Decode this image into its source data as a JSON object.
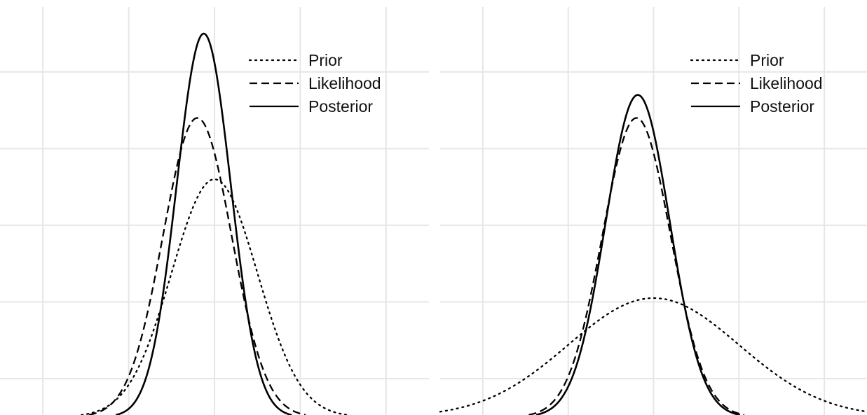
{
  "colors": {
    "background": "#ffffff",
    "grid": "#e6e6e6",
    "line": "#000000"
  },
  "legend": {
    "placement": "top-right",
    "items": [
      {
        "label": "Prior",
        "style": "dotted"
      },
      {
        "label": "Likelihood",
        "style": "dashed"
      },
      {
        "label": "Posterior",
        "style": "solid"
      }
    ]
  },
  "chart_data": [
    {
      "type": "line",
      "panel": "left",
      "title": "",
      "xlabel": "",
      "ylabel": "",
      "grid": true,
      "x_gridlines": [
        -4,
        -2,
        0,
        2,
        4
      ],
      "y_gridlines": [
        0.1,
        0.3,
        0.5,
        0.7,
        0.9
      ],
      "xlim": [
        -5,
        5
      ],
      "ylim": [
        0.005,
        1.0
      ],
      "series": [
        {
          "name": "Prior",
          "style": "dotted",
          "dist": "normal",
          "mean": 0,
          "sd": 1.0,
          "peak": 0.62
        },
        {
          "name": "Likelihood",
          "style": "dashed",
          "dist": "normal",
          "mean": -0.4,
          "sd": 0.8,
          "peak": 0.78
        },
        {
          "name": "Posterior",
          "style": "solid",
          "dist": "normal",
          "mean": -0.25,
          "sd": 0.63,
          "peak": 1.0
        }
      ]
    },
    {
      "type": "line",
      "panel": "right",
      "title": "",
      "xlabel": "",
      "ylabel": "",
      "grid": true,
      "x_gridlines": [
        -4,
        -2,
        0,
        2,
        4
      ],
      "y_gridlines": [
        0.1,
        0.3,
        0.5,
        0.7,
        0.9
      ],
      "xlim": [
        -5,
        5
      ],
      "ylim": [
        0.005,
        1.0
      ],
      "series": [
        {
          "name": "Prior",
          "style": "dotted",
          "dist": "normal",
          "mean": 0,
          "sd": 2.0,
          "peak": 0.31
        },
        {
          "name": "Likelihood",
          "style": "dashed",
          "dist": "normal",
          "mean": -0.4,
          "sd": 0.8,
          "peak": 0.78
        },
        {
          "name": "Posterior",
          "style": "solid",
          "dist": "normal",
          "mean": -0.37,
          "sd": 0.75,
          "peak": 0.84
        }
      ]
    }
  ]
}
